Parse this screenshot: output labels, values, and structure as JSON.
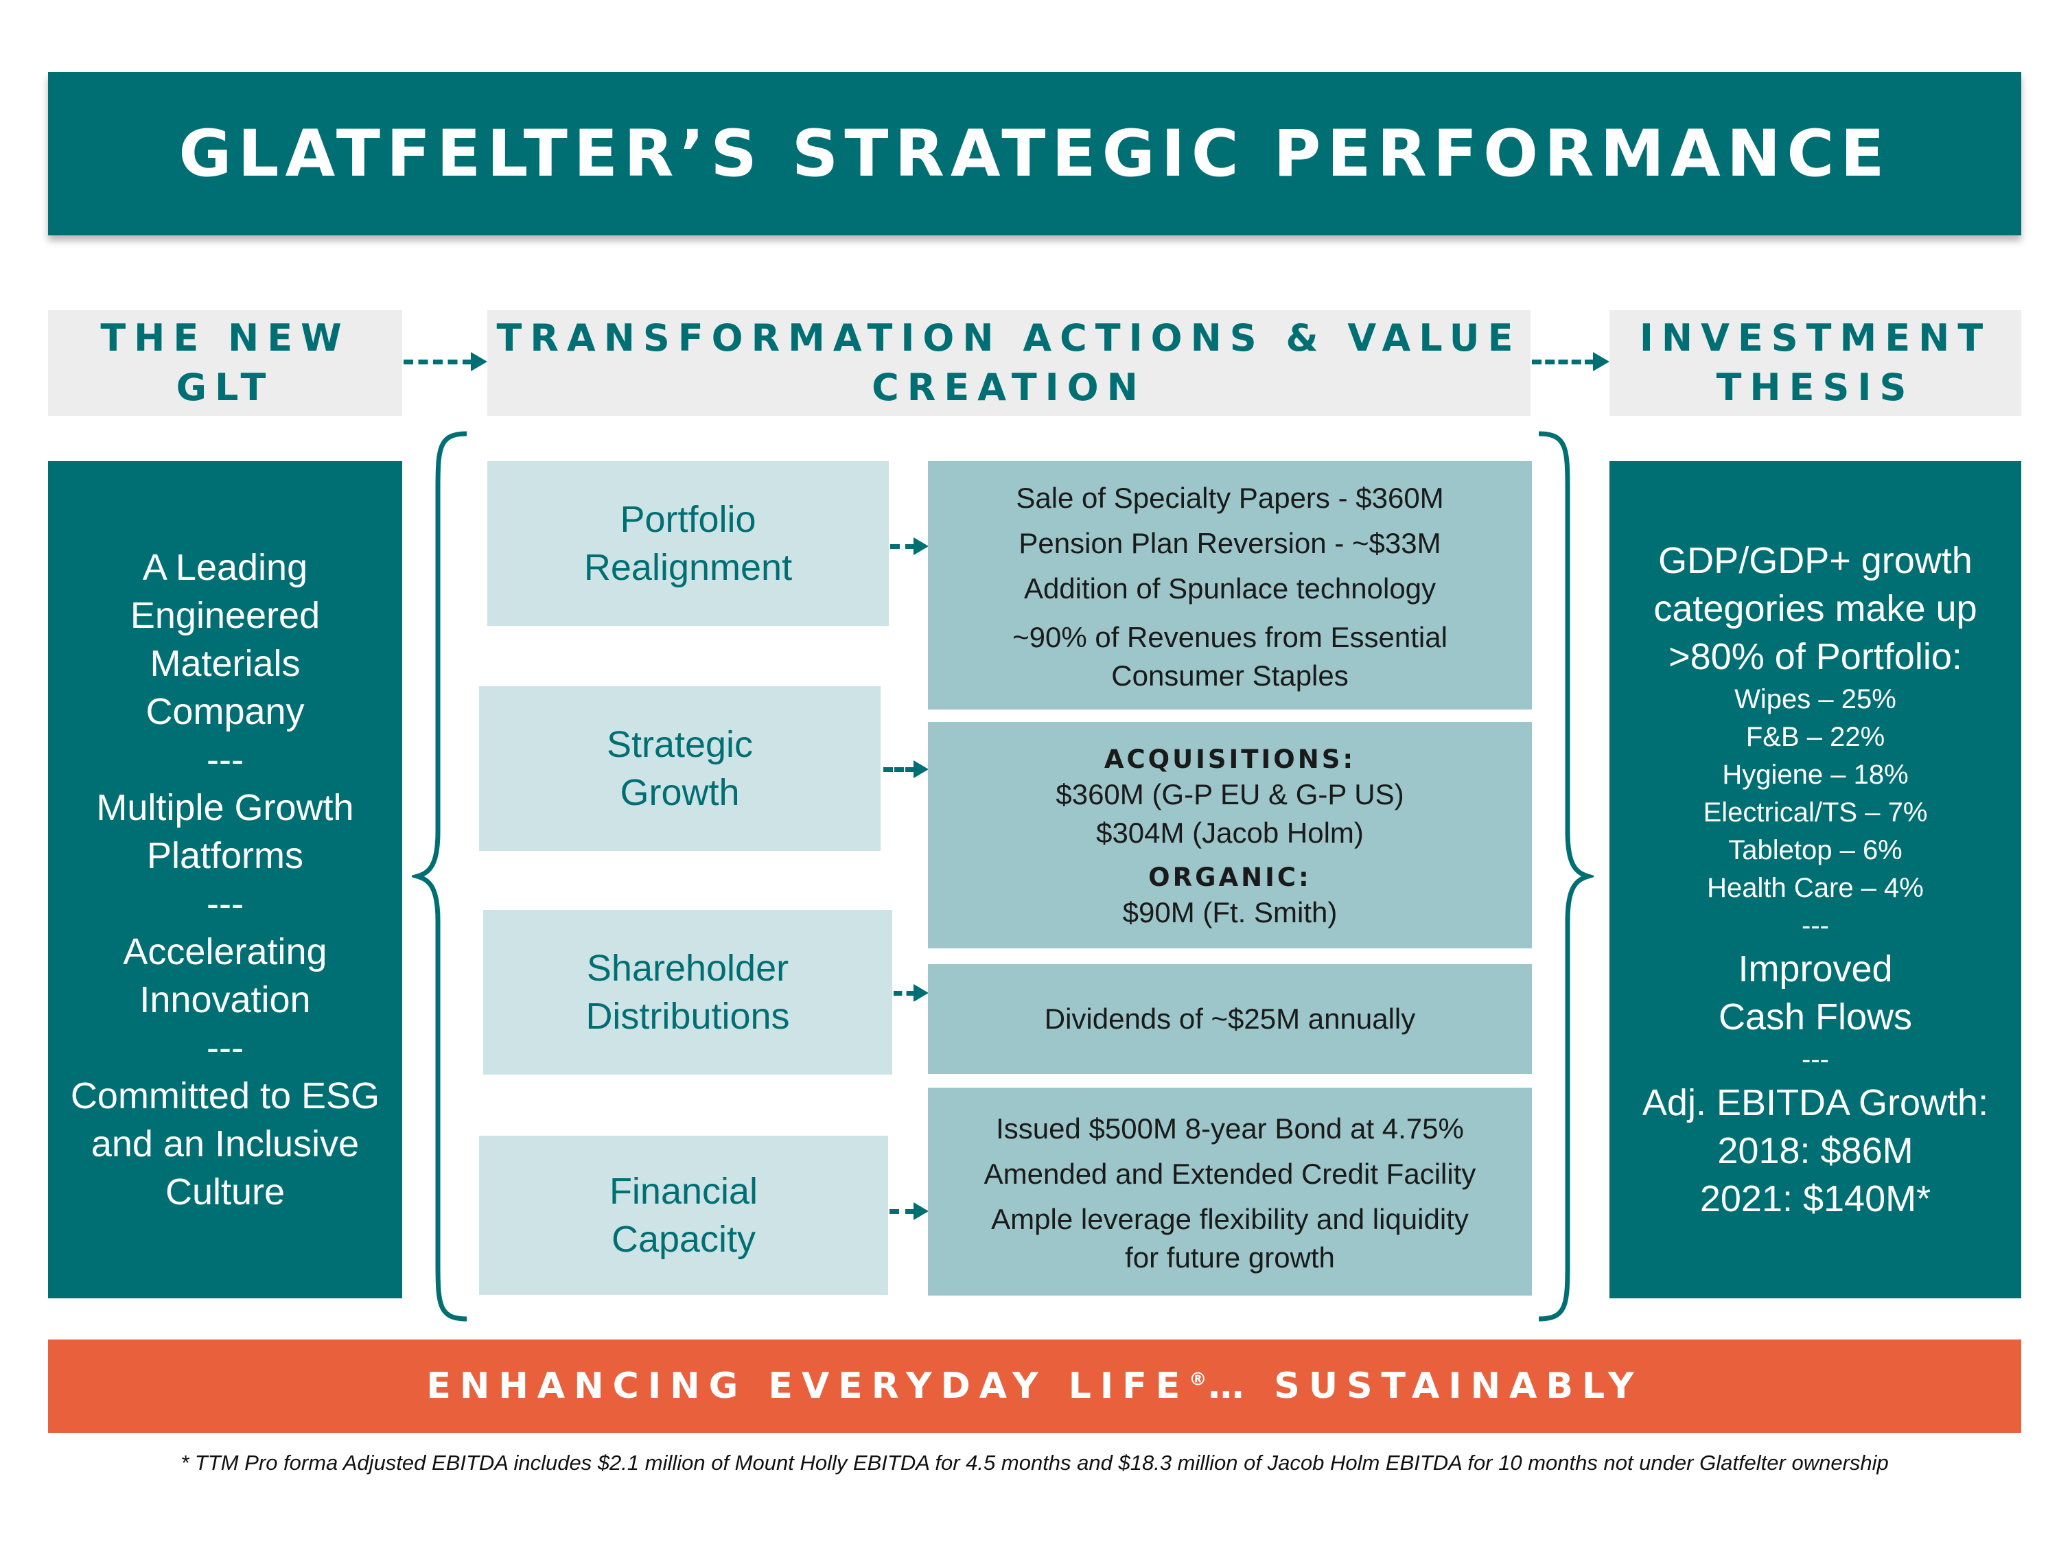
{
  "title": "GLATFELTER’S STRATEGIC PERFORMANCE",
  "headers": {
    "new_glt": [
      "THE NEW",
      "GLT"
    ],
    "transformation": [
      "TRANSFORMATION ACTIONS & VALUE",
      "CREATION"
    ],
    "investment": [
      "INVESTMENT",
      "THESIS"
    ]
  },
  "new_glt_box": {
    "lines": [
      "A Leading",
      "Engineered",
      "Materials",
      "Company",
      "---",
      "Multiple Growth",
      "Platforms",
      "---",
      "Accelerating",
      "Innovation",
      "---",
      "Committed to ESG",
      "and an Inclusive",
      "Culture"
    ]
  },
  "actions": {
    "portfolio": [
      "Portfolio",
      "Realignment"
    ],
    "growth": [
      "Strategic",
      "Growth"
    ],
    "shareholder": [
      "Shareholder",
      "Distributions"
    ],
    "financial": [
      "Financial",
      "Capacity"
    ]
  },
  "details": {
    "portfolio": [
      "Sale of Specialty Papers - $360M",
      "Pension Plan Reversion -  ~$33M",
      "Addition of Spunlace technology",
      "~90% of Revenues from Essential",
      "Consumer Staples"
    ],
    "growth": {
      "acq_head": "ACQUISITIONS:",
      "acq_lines": [
        "$360M (G-P EU & G-P US)",
        "$304M (Jacob Holm)"
      ],
      "org_head": "ORGANIC:",
      "org_lines": [
        "$90M (Ft. Smith)"
      ]
    },
    "shareholder": [
      "Dividends of ~$25M annually"
    ],
    "financial": [
      "Issued $500M 8-year Bond at 4.75%",
      "Amended and Extended Credit Facility",
      "Ample leverage flexibility and liquidity",
      "for future growth"
    ]
  },
  "investment_box": {
    "intro": [
      "GDP/GDP+ growth",
      "categories make up",
      ">80% of Portfolio:"
    ],
    "categories": [
      "Wipes – 25%",
      "F&B – 22%",
      "Hygiene – 18%",
      "Electrical/TS – 7%",
      "Tabletop – 6%",
      "Health Care – 4%"
    ],
    "sep1": "---",
    "cash": [
      "Improved",
      "Cash Flows"
    ],
    "sep2": "---",
    "ebitda": [
      "Adj. EBITDA Growth:",
      "2018: $86M",
      "2021: $140M*"
    ]
  },
  "tagline": {
    "main": "ENHANCING EVERYDAY LIFE",
    "reg": "®",
    "rest": "… SUSTAINABLY"
  },
  "footnote": "*  TTM Pro forma Adjusted EBITDA includes $2.1 million of Mount Holly EBITDA for 4.5 months and $18.3 million of Jacob Holm EBITDA for 10 months not under Glatfelter ownership",
  "colors": {
    "teal": "#006f73",
    "light_teal": "#cde3e6",
    "mid_teal": "#9cc6c9",
    "orange": "#e9603d",
    "header_gray": "#ededed"
  }
}
